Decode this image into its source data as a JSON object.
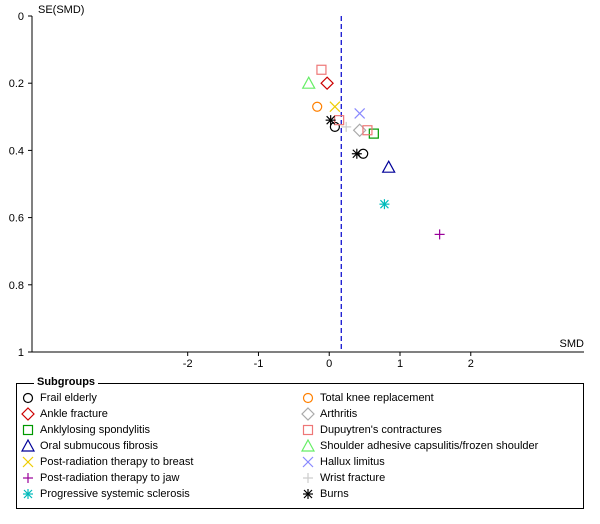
{
  "chart_data": {
    "type": "scatter",
    "subtype": "funnel plot",
    "xlabel": "SMD",
    "ylabel": "SE(SMD)",
    "xlim": [
      -4.2,
      3.6
    ],
    "ylim": [
      0,
      1
    ],
    "y_inverted": true,
    "xticks": [
      -2,
      -1,
      0,
      1,
      2
    ],
    "xtick_labels": [
      "-2",
      "-1",
      "0",
      "1",
      "2"
    ],
    "yticks": [
      0,
      0.2,
      0.4,
      0.6,
      0.8,
      1
    ],
    "ytick_labels": [
      "0",
      "0.2",
      "0.4",
      "0.6",
      "0.8",
      "1"
    ],
    "summary_line": {
      "x": 0.17,
      "style": "dashed",
      "color": "#0000cc"
    },
    "legend_title": "Subgroups",
    "series": [
      {
        "name": "Frail elderly",
        "marker": "circle",
        "color": "#000000",
        "points": [
          {
            "x": 0.08,
            "y": 0.33
          },
          {
            "x": 0.48,
            "y": 0.41
          }
        ]
      },
      {
        "name": "Total knee replacement",
        "marker": "circle",
        "color": "#ff8000",
        "points": [
          {
            "x": -0.17,
            "y": 0.27
          }
        ]
      },
      {
        "name": "Ankle fracture",
        "marker": "diamond",
        "color": "#cc0000",
        "points": [
          {
            "x": -0.03,
            "y": 0.2
          }
        ]
      },
      {
        "name": "Arthritis",
        "marker": "diamond",
        "color": "#aaaaaa",
        "points": [
          {
            "x": 0.43,
            "y": 0.34
          }
        ]
      },
      {
        "name": "Anklylosing spondylitis",
        "marker": "square",
        "color": "#009900",
        "points": [
          {
            "x": 0.63,
            "y": 0.35
          }
        ]
      },
      {
        "name": "Dupuytren's contractures",
        "marker": "square",
        "color": "#ee7777",
        "points": [
          {
            "x": -0.11,
            "y": 0.16
          },
          {
            "x": 0.14,
            "y": 0.31
          },
          {
            "x": 0.54,
            "y": 0.34
          }
        ]
      },
      {
        "name": "Oral submucous fibrosis",
        "marker": "triangle",
        "color": "#000099",
        "points": [
          {
            "x": 0.84,
            "y": 0.45
          }
        ]
      },
      {
        "name": "Shoulder adhesive capsulitis/frozen shoulder",
        "marker": "triangle",
        "color": "#66ee66",
        "points": [
          {
            "x": -0.29,
            "y": 0.2
          }
        ]
      },
      {
        "name": "Post-radiation therapy to breast",
        "marker": "x",
        "color": "#eecc00",
        "points": [
          {
            "x": 0.08,
            "y": 0.27
          }
        ]
      },
      {
        "name": "Hallux limitus",
        "marker": "x",
        "color": "#8888ff",
        "points": [
          {
            "x": 0.43,
            "y": 0.29
          }
        ]
      },
      {
        "name": "Post-radiation therapy to jaw",
        "marker": "plus",
        "color": "#990099",
        "points": [
          {
            "x": 1.56,
            "y": 0.65
          }
        ]
      },
      {
        "name": "Wrist fracture",
        "marker": "plus",
        "color": "#cccccc",
        "points": [
          {
            "x": 0.24,
            "y": 0.33
          }
        ]
      },
      {
        "name": "Progressive systemic sclerosis",
        "marker": "asterisk",
        "color": "#00bbbb",
        "points": [
          {
            "x": 0.78,
            "y": 0.56
          }
        ]
      },
      {
        "name": "Burns",
        "marker": "asterisk",
        "color": "#000000",
        "points": [
          {
            "x": 0.02,
            "y": 0.31
          },
          {
            "x": 0.39,
            "y": 0.41
          }
        ]
      }
    ]
  }
}
